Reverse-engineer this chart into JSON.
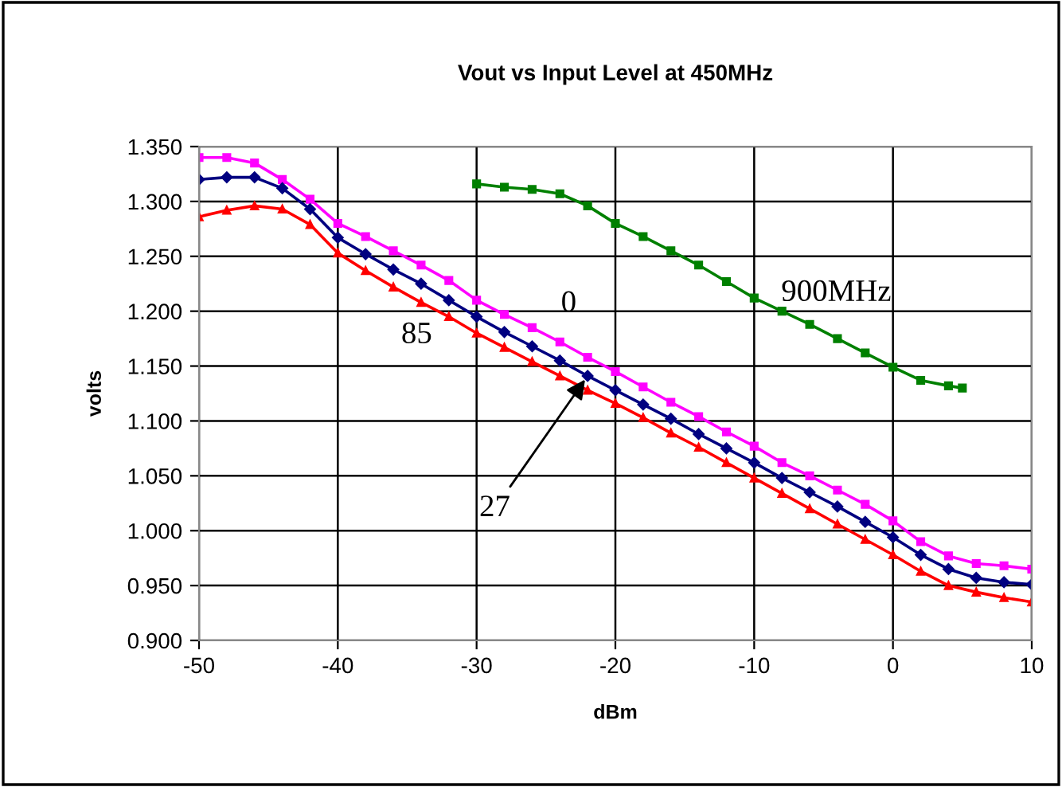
{
  "chart_data": {
    "type": "line",
    "title": "Vout vs Input Level at 450MHz",
    "xlabel": "dBm",
    "ylabel": "volts",
    "xlim": [
      -50,
      10
    ],
    "xticks": [
      -50,
      -40,
      -30,
      -20,
      -10,
      0,
      10
    ],
    "ylim": [
      0.9,
      1.35
    ],
    "yticks": [
      {
        "value": 0.9,
        "label": "0.900"
      },
      {
        "value": 0.95,
        "label": "0.950"
      },
      {
        "value": 1.0,
        "label": "1.000"
      },
      {
        "value": 1.05,
        "label": "1.050"
      },
      {
        "value": 1.1,
        "label": "1.100"
      },
      {
        "value": 1.15,
        "label": "1.150"
      },
      {
        "value": 1.2,
        "label": "1.200"
      },
      {
        "value": 1.25,
        "label": "1.250"
      },
      {
        "value": 1.3,
        "label": "1.300"
      },
      {
        "value": 1.35,
        "label": "1.350"
      }
    ],
    "grid": true,
    "legend": false,
    "x": [
      -50,
      -48,
      -46,
      -44,
      -42,
      -40,
      -38,
      -36,
      -34,
      -32,
      -30,
      -28,
      -26,
      -24,
      -22,
      -20,
      -18,
      -16,
      -14,
      -12,
      -10,
      -8,
      -6,
      -4,
      -2,
      0,
      2,
      4,
      6,
      8,
      10
    ],
    "series": [
      {
        "name": "0",
        "color": "#ff00ff",
        "marker": "square",
        "values": [
          1.34,
          1.34,
          1.335,
          1.32,
          1.302,
          1.28,
          1.268,
          1.255,
          1.242,
          1.228,
          1.21,
          1.197,
          1.185,
          1.172,
          1.158,
          1.145,
          1.131,
          1.117,
          1.104,
          1.09,
          1.077,
          1.062,
          1.05,
          1.037,
          1.024,
          1.009,
          0.99,
          0.977,
          0.97,
          0.968,
          0.965
        ]
      },
      {
        "name": "27",
        "color": "#000080",
        "marker": "diamond",
        "values": [
          1.32,
          1.322,
          1.322,
          1.312,
          1.293,
          1.267,
          1.252,
          1.238,
          1.225,
          1.21,
          1.195,
          1.181,
          1.168,
          1.155,
          1.141,
          1.128,
          1.115,
          1.102,
          1.088,
          1.075,
          1.062,
          1.048,
          1.035,
          1.022,
          1.008,
          0.994,
          0.978,
          0.965,
          0.957,
          0.953,
          0.951
        ]
      },
      {
        "name": "85",
        "color": "#ff0000",
        "marker": "triangle",
        "values": [
          1.286,
          1.292,
          1.296,
          1.293,
          1.279,
          1.253,
          1.237,
          1.222,
          1.208,
          1.195,
          1.18,
          1.167,
          1.154,
          1.141,
          1.128,
          1.116,
          1.103,
          1.089,
          1.076,
          1.062,
          1.048,
          1.034,
          1.02,
          1.006,
          0.992,
          0.978,
          0.963,
          0.95,
          0.944,
          0.939,
          0.935
        ]
      },
      {
        "name": "900MHz",
        "color": "#008000",
        "marker": "square",
        "x": [
          -30,
          -28,
          -26,
          -24,
          -22,
          -20,
          -18,
          -16,
          -14,
          -12,
          -10,
          -8,
          -6,
          -4,
          -2,
          0,
          2,
          4,
          5
        ],
        "values": [
          1.316,
          1.313,
          1.311,
          1.307,
          1.296,
          1.28,
          1.268,
          1.255,
          1.242,
          1.227,
          1.212,
          1.2,
          1.188,
          1.175,
          1.162,
          1.149,
          1.137,
          1.132,
          1.13
        ]
      }
    ]
  }
}
